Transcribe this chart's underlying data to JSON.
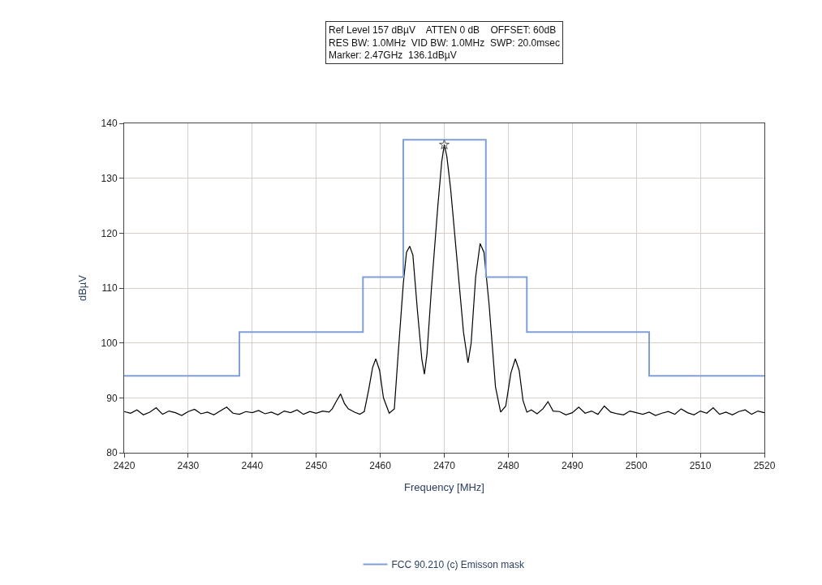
{
  "chart_data": {
    "type": "line",
    "annotations": [
      "Ref Level 157 dBµV    ATTEN 0 dB    OFFSET: 60dB",
      "RES BW: 1.0MHz  VID BW: 1.0MHz  SWP: 20.0msec",
      "Marker: 2.47GHz  136.1dBµV"
    ],
    "xlabel": "Frequency [MHz]",
    "ylabel": "dBµV",
    "xlim": [
      2420,
      2520
    ],
    "xticks": [
      2420,
      2430,
      2440,
      2450,
      2460,
      2470,
      2480,
      2490,
      2500,
      2510,
      2520
    ],
    "ylim": [
      80,
      140
    ],
    "yticks": [
      80,
      90,
      100,
      110,
      120,
      130,
      140
    ],
    "grid": true,
    "legend": "bottom",
    "series": [
      {
        "color": "#000000",
        "x": [
          2420,
          2421,
          2422,
          2423,
          2424,
          2425,
          2426,
          2427,
          2428,
          2429,
          2430,
          2431,
          2432,
          2433,
          2434,
          2435,
          2436,
          2437,
          2438,
          2439,
          2440,
          2441,
          2442,
          2443,
          2444,
          2445,
          2446,
          2447,
          2448,
          2449,
          2450,
          2451,
          2452,
          2452.5,
          2453.2,
          2453.8,
          2454.4,
          2455,
          2456,
          2456.8,
          2457.5,
          2458.2,
          2458.8,
          2459.3,
          2459.9,
          2460.5,
          2461.4,
          2462.2,
          2462.8,
          2463.6,
          2464.1,
          2464.6,
          2465.1,
          2465.8,
          2466.5,
          2466.9,
          2467.3,
          2468,
          2469,
          2469.6,
          2470,
          2470.4,
          2471,
          2472,
          2473,
          2473.7,
          2474.2,
          2474.9,
          2475.6,
          2476.2,
          2477,
          2478,
          2478.8,
          2479.6,
          2480.4,
          2481.1,
          2481.7,
          2482.3,
          2482.9,
          2483.6,
          2484.5,
          2485.4,
          2486.2,
          2487,
          2488,
          2489,
          2490,
          2491,
          2492,
          2493,
          2494,
          2495,
          2496,
          2497,
          2498,
          2499,
          2500,
          2501,
          2502,
          2503,
          2504,
          2505,
          2506,
          2507,
          2508,
          2509,
          2510,
          2511,
          2512,
          2513,
          2514,
          2515,
          2516,
          2517,
          2518,
          2519,
          2520
        ],
        "values": [
          87.5,
          87.2,
          87.8,
          86.9,
          87.4,
          88.2,
          87.0,
          87.6,
          87.3,
          86.8,
          87.5,
          87.9,
          87.1,
          87.4,
          86.9,
          87.6,
          88.3,
          87.2,
          87.0,
          87.5,
          87.3,
          87.7,
          87.1,
          87.4,
          86.9,
          87.6,
          87.3,
          87.8,
          87.0,
          87.5,
          87.2,
          87.6,
          87.4,
          88.0,
          89.5,
          90.7,
          89.0,
          88.0,
          87.4,
          87.0,
          87.5,
          91.5,
          95.5,
          97.1,
          95.0,
          90.0,
          87.2,
          88.0,
          98,
          110.8,
          116.5,
          117.6,
          116,
          106,
          97,
          94.3,
          98,
          110,
          125,
          133,
          136.1,
          134,
          128,
          115,
          102,
          96.4,
          100,
          112,
          118.1,
          116.5,
          107,
          92,
          87.4,
          88.5,
          94.5,
          97.1,
          95,
          89.5,
          87.4,
          87.8,
          87.1,
          88.0,
          89.3,
          87.6,
          87.5,
          86.9,
          87.3,
          88.3,
          87.2,
          87.6,
          87.0,
          88.5,
          87.4,
          87.1,
          86.9,
          87.6,
          87.3,
          87.0,
          87.4,
          86.8,
          87.2,
          87.5,
          87.0,
          88.0,
          87.3,
          86.9,
          87.6,
          87.2,
          88.2,
          87.0,
          87.4,
          86.9,
          87.5,
          87.8,
          87.0,
          87.6,
          87.3
        ]
      },
      {
        "type": "step",
        "name": "FCC 90.210 (c) Emisson mask",
        "color": "#7f9fd8",
        "x": [
          2420,
          2438,
          2457.3,
          2463.6,
          2476.5,
          2482.9,
          2502,
          2520
        ],
        "values": [
          94,
          102,
          112,
          137,
          112,
          102,
          94,
          94
        ]
      },
      {
        "type": "scatter",
        "color": "#555555",
        "marker": "star",
        "x": [
          2470
        ],
        "values": [
          136.1
        ]
      }
    ]
  }
}
